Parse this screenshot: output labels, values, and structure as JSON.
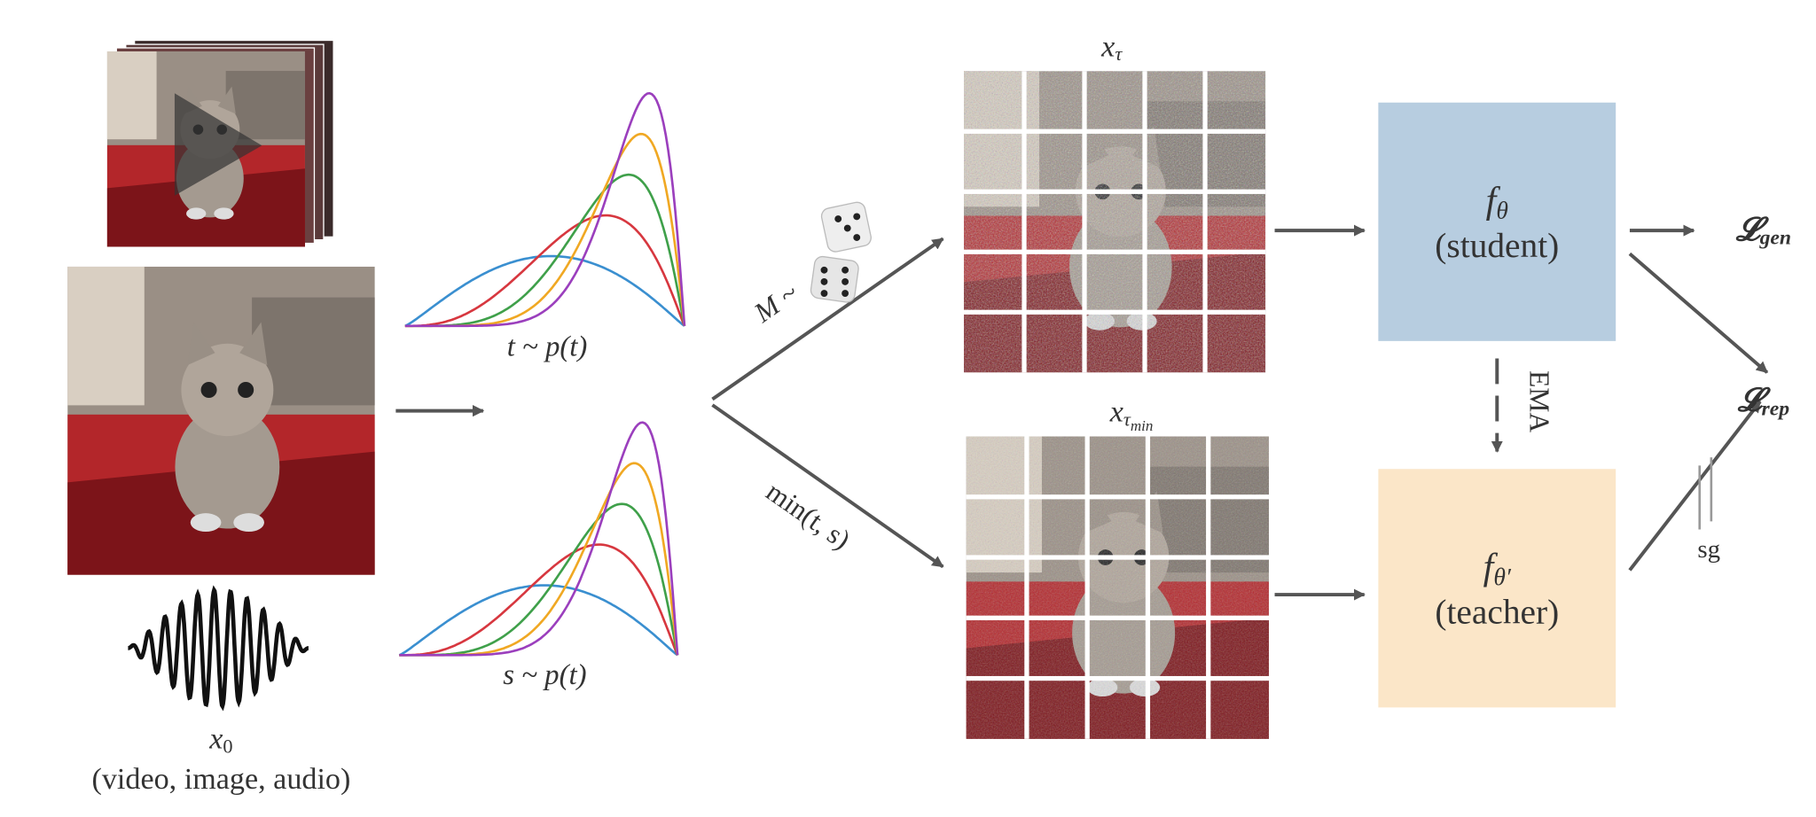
{
  "input": {
    "symbol": "x",
    "subscript": "0",
    "caption": "(video, image, audio)"
  },
  "sampling": {
    "top_label": "t ~ p(t)",
    "bottom_label": "s ~ p(t)"
  },
  "branches": {
    "top_label": "M ~",
    "bottom_label": "min(t, s)"
  },
  "grids": {
    "top": {
      "symbol": "x",
      "subscript": "τ"
    },
    "bottom": {
      "symbol": "x",
      "subscript": "τ",
      "sub_subscript": "min"
    }
  },
  "student": {
    "symbol": "f",
    "subscript": "θ",
    "label": "(student)"
  },
  "teacher": {
    "symbol": "f",
    "subscript": "θ′",
    "label": "(teacher)"
  },
  "ema": "EMA",
  "stop_grad": "sg",
  "losses": {
    "gen": {
      "symbol": "𝓛",
      "subscript": "gen"
    },
    "rep": {
      "symbol": "𝓛",
      "subscript": "rep"
    }
  }
}
